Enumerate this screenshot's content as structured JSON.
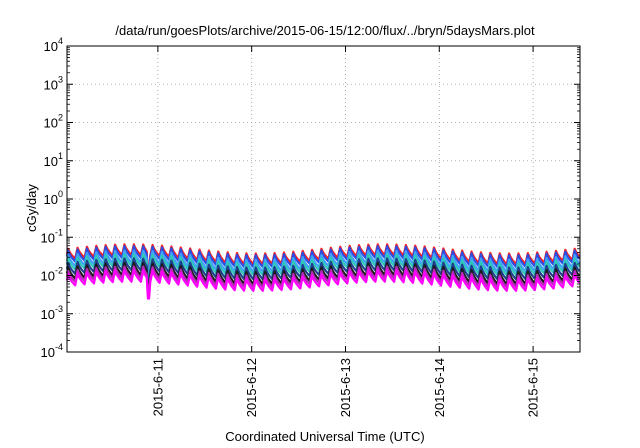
{
  "chart_data": {
    "type": "line",
    "title": "/data/run/goesPlots/archive/2015-06-15/12:00/flux/../bryn/5daysMars.plot",
    "xlabel": "Coordinated Universal Time (UTC)",
    "ylabel": "cGy/day",
    "yscale": "log",
    "ylim": [
      0.0001,
      10000
    ],
    "y_ticks": [
      {
        "base": "10",
        "exp": "-4"
      },
      {
        "base": "10",
        "exp": "-3"
      },
      {
        "base": "10",
        "exp": "-2"
      },
      {
        "base": "10",
        "exp": "-1"
      },
      {
        "base": "10",
        "exp": "0"
      },
      {
        "base": "10",
        "exp": "1"
      },
      {
        "base": "10",
        "exp": "2"
      },
      {
        "base": "10",
        "exp": "3"
      },
      {
        "base": "10",
        "exp": "4"
      }
    ],
    "xlim": [
      "2015-06-10 00:45",
      "2015-06-15 12:00"
    ],
    "x_ticks": [
      "2015-6-11",
      "2015-6-12",
      "2015-6-13",
      "2015-6-14",
      "2015-6-15"
    ],
    "grid": true,
    "sawtooth_period_hours": 2.4,
    "series": [
      {
        "color": "#ff2020",
        "peak": 0.06,
        "trough": 0.025,
        "dip_at": [
          "2015-06-10 21:30",
          0.011
        ]
      },
      {
        "color": "#2d4de0",
        "peak": 0.055,
        "trough": 0.021,
        "dip_at": [
          "2015-06-10 21:30",
          0.01
        ]
      },
      {
        "color": "#3fa0ff",
        "peak": 0.042,
        "trough": 0.016,
        "dip_at": [
          "2015-06-10 21:30",
          0.008
        ]
      },
      {
        "color": "#30c8b8",
        "peak": 0.034,
        "trough": 0.013,
        "dip_at": [
          "2015-06-10 21:30",
          0.0065
        ]
      },
      {
        "color": "#1f3f8f",
        "peak": 0.026,
        "trough": 0.01,
        "dip_at": [
          "2015-06-10 21:30",
          0.005
        ]
      },
      {
        "color": "#1c1c1c",
        "peak": 0.02,
        "trough": 0.0075,
        "dip_at": [
          "2015-06-10 21:30",
          0.004
        ]
      },
      {
        "color": "#b52bb5",
        "peak": 0.016,
        "trough": 0.0062,
        "dip_at": [
          "2015-06-10 21:30",
          0.0032
        ]
      },
      {
        "color": "#ff00ff",
        "peak": 0.013,
        "trough": 0.005,
        "dip_at": [
          "2015-06-10 21:30",
          0.0025
        ]
      }
    ]
  }
}
